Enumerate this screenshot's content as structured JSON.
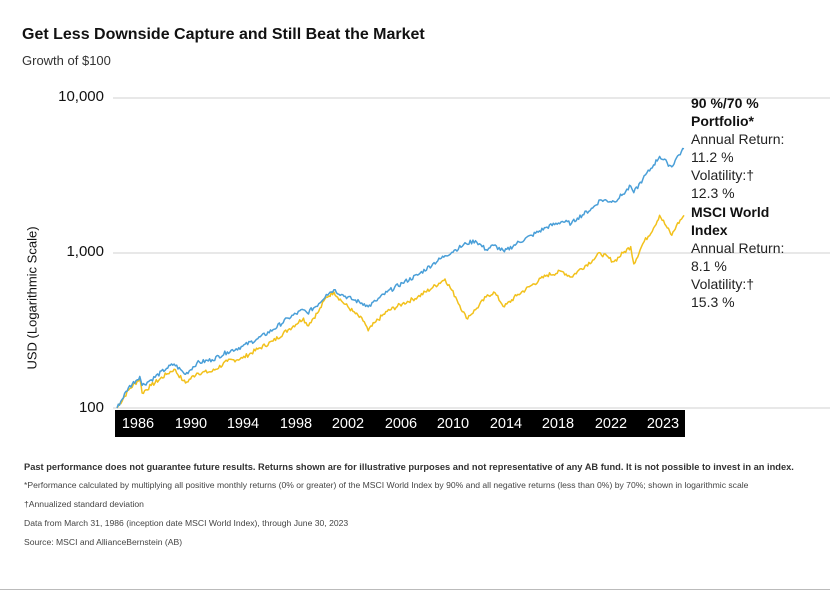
{
  "header": {
    "title": "Get Less Downside Capture and Still Beat the Market",
    "subtitle": "Growth of $100"
  },
  "side_labels": {
    "portfolio": {
      "name_line1": "90 %/70 %",
      "name_line2": "Portfolio*",
      "return_label": "Annual Return:",
      "return_value": "11.2 %",
      "vol_label": "Volatility:†",
      "vol_value": "12.3 %"
    },
    "index": {
      "name_line1": "MSCI World",
      "name_line2": "Index",
      "return_label": "Annual Return:",
      "return_value": "8.1 %",
      "vol_label": "Volatility:†",
      "vol_value": "15.3 %"
    }
  },
  "footer": {
    "disclaimer": "Past performance does not guarantee future results. Returns shown are for illustrative purposes and not representative of any AB fund. It is not possible to invest in an index.",
    "note1": "*Performance calculated by multiplying all positive monthly returns (0% or greater) of the MSCI World Index by 90% and all negative returns (less than 0%) by 70%; shown in logarithmic scale",
    "note2": "†Annualized standard deviation",
    "note3": "Data from March 31, 1986 (inception date MSCI World Index), through June 30, 2023",
    "note4": "Source: MSCI and AllianceBernstein (AB)"
  },
  "chart_data": {
    "type": "line",
    "title": "Get Less Downside Capture and Still Beat the Market",
    "subtitle": "Growth of $100",
    "xlabel": "",
    "ylabel": "USD (Logarithmic Scale)",
    "y_scale": "log",
    "ylim": [
      100,
      10000
    ],
    "xlim": [
      1986.25,
      2023.5
    ],
    "y_ticks": [
      100,
      1000,
      10000
    ],
    "y_tick_labels": [
      "100",
      "1,000",
      "10,000"
    ],
    "x_tick_labels": [
      "1986",
      "1990",
      "1994",
      "1998",
      "2002",
      "2006",
      "2010",
      "2014",
      "2018",
      "2022",
      "2023"
    ],
    "grid": "horizontal",
    "legend": "right-side labels",
    "colors": {
      "portfolio": "#4a9fd8",
      "index": "#f2c11c"
    },
    "series": [
      {
        "name": "90 %/70 % Portfolio*",
        "color": "#4a9fd8",
        "x": [
          1986.25,
          1987.0,
          1987.75,
          1987.9,
          1988.5,
          1989.5,
          1990.0,
          1990.6,
          1990.75,
          1991.5,
          1992.5,
          1993.5,
          1994.5,
          1995.5,
          1996.5,
          1997.5,
          1998.5,
          1998.75,
          1999.5,
          2000.0,
          2000.5,
          2001.0,
          2001.75,
          2002.5,
          2002.75,
          2003.25,
          2004.0,
          2005.0,
          2006.0,
          2007.0,
          2007.8,
          2008.5,
          2009.2,
          2009.8,
          2010.5,
          2011.0,
          2011.7,
          2012.5,
          2013.5,
          2014.5,
          2015.5,
          2016.1,
          2016.5,
          2017.5,
          2018.0,
          2018.9,
          2019.5,
          2020.0,
          2020.2,
          2020.8,
          2021.5,
          2021.9,
          2022.4,
          2022.7,
          2023.0,
          2023.5
        ],
        "values": [
          100,
          135,
          160,
          140,
          152,
          180,
          192,
          170,
          165,
          195,
          205,
          230,
          250,
          280,
          320,
          380,
          430,
          410,
          470,
          540,
          580,
          540,
          500,
          470,
          450,
          490,
          560,
          640,
          720,
          850,
          960,
          1050,
          1150,
          1200,
          1050,
          1120,
          1020,
          1150,
          1300,
          1470,
          1600,
          1550,
          1680,
          1950,
          2200,
          2150,
          2400,
          2700,
          2450,
          3000,
          3700,
          4200,
          3800,
          3600,
          4100,
          4700
        ]
      },
      {
        "name": "MSCI World Index",
        "color": "#f2c11c",
        "x": [
          1986.25,
          1987.0,
          1987.75,
          1987.9,
          1988.5,
          1989.5,
          1990.0,
          1990.6,
          1990.75,
          1991.5,
          1992.5,
          1993.5,
          1994.5,
          1995.5,
          1996.5,
          1997.5,
          1998.5,
          1998.75,
          1999.5,
          2000.0,
          2000.5,
          2001.0,
          2001.75,
          2002.5,
          2002.75,
          2003.25,
          2004.0,
          2005.0,
          2006.0,
          2007.0,
          2007.8,
          2008.5,
          2009.2,
          2009.8,
          2010.5,
          2011.0,
          2011.7,
          2012.5,
          2013.5,
          2014.5,
          2015.5,
          2016.1,
          2016.5,
          2017.5,
          2018.0,
          2018.9,
          2019.5,
          2020.0,
          2020.2,
          2020.8,
          2021.5,
          2021.9,
          2022.4,
          2022.7,
          2023.0,
          2023.5
        ],
        "values": [
          100,
          130,
          155,
          125,
          140,
          165,
          178,
          150,
          145,
          168,
          172,
          200,
          210,
          240,
          270,
          320,
          380,
          340,
          420,
          520,
          560,
          490,
          420,
          360,
          315,
          360,
          420,
          470,
          520,
          600,
          680,
          520,
          380,
          430,
          520,
          560,
          450,
          530,
          620,
          720,
          760,
          700,
          760,
          900,
          1000,
          880,
          1000,
          1100,
          850,
          1150,
          1450,
          1750,
          1450,
          1300,
          1500,
          1750
        ]
      }
    ]
  }
}
